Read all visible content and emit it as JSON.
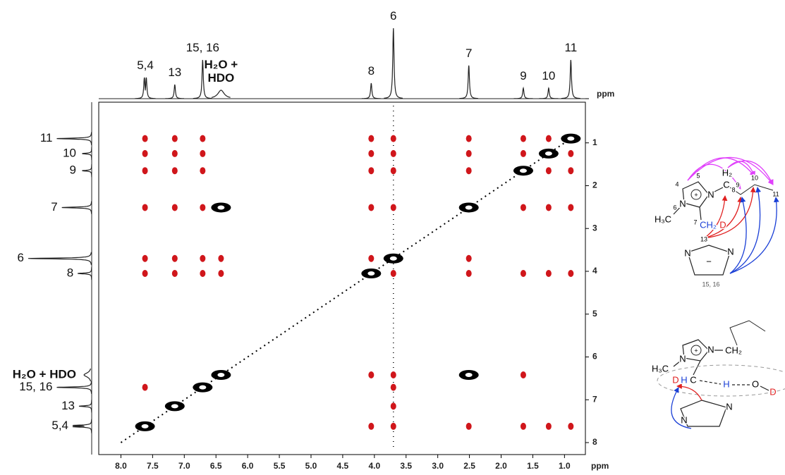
{
  "chart_data": {
    "type": "nmr2d",
    "xlim": [
      8.35,
      0.67
    ],
    "ylim": [
      0.05,
      8.28
    ],
    "xticks": [
      {
        "value": 8,
        "label": "8.0"
      },
      7.5,
      {
        "value": 7,
        "label": "7.0"
      },
      6.5,
      {
        "value": 6,
        "label": "6.0"
      },
      5.5,
      {
        "value": 5,
        "label": "5.0"
      },
      4.5,
      {
        "value": 4,
        "label": "4.0"
      },
      3.5,
      {
        "value": 3,
        "label": "3.0"
      },
      2.5,
      {
        "value": 2,
        "label": "2.0"
      },
      1.5,
      {
        "value": 1,
        "label": "1.0"
      }
    ],
    "yticks": [
      1,
      2,
      3,
      4,
      5,
      6,
      7,
      8
    ],
    "x_axis_label": "ppm",
    "projection_axis_label": "ppm",
    "projection_color": "#222222",
    "projection": [
      {
        "label": "5,4",
        "ppm": [
          7.63,
          7.6
        ],
        "height": 0.3
      },
      {
        "label": "13",
        "ppm": [
          7.15
        ],
        "height": 0.2
      },
      {
        "label": "15, 16",
        "ppm": [
          6.71
        ],
        "height": 0.55
      },
      {
        "label": "H₂O + HDO",
        "ppm": [
          6.42
        ],
        "height": 0.12,
        "bold": true
      },
      {
        "label": "8",
        "ppm": [
          4.05
        ],
        "height": 0.22
      },
      {
        "label": "6",
        "ppm": [
          3.7
        ],
        "height": 1.0
      },
      {
        "label": "7",
        "ppm": [
          2.51
        ],
        "height": 0.47
      },
      {
        "label": "9",
        "ppm": [
          1.65
        ],
        "height": 0.15
      },
      {
        "label": "10",
        "ppm": [
          1.25
        ],
        "height": 0.15
      },
      {
        "label": "11",
        "ppm": [
          0.9
        ],
        "height": 0.55
      }
    ],
    "series": [
      {
        "color": "#d0161b",
        "x": [
          7.62,
          7.15,
          6.71,
          4.05,
          3.7,
          2.51,
          1.65,
          1.25,
          7.62,
          7.15,
          6.71,
          4.05,
          3.7,
          2.51,
          1.65,
          0.9,
          7.62,
          7.15,
          6.71,
          4.05,
          3.7,
          2.51,
          1.25,
          0.9,
          7.62,
          7.15,
          6.71,
          4.05,
          3.7,
          1.65,
          1.25,
          0.9,
          7.62,
          7.15,
          6.71,
          6.42,
          4.05,
          2.51,
          7.62,
          7.15,
          6.71,
          6.42,
          3.7,
          2.51,
          1.65,
          1.25,
          0.9,
          4.05,
          3.7,
          1.65,
          7.62,
          3.7,
          3.7,
          4.05,
          3.7,
          2.51,
          1.65,
          1.25,
          0.9
        ],
        "y": [
          0.9,
          0.9,
          0.9,
          0.9,
          0.9,
          0.9,
          0.9,
          0.9,
          1.25,
          1.25,
          1.25,
          1.25,
          1.25,
          1.25,
          1.25,
          1.25,
          1.65,
          1.65,
          1.65,
          1.65,
          1.65,
          1.65,
          1.65,
          1.65,
          2.51,
          2.51,
          2.51,
          2.51,
          2.51,
          2.51,
          2.51,
          2.51,
          3.7,
          3.7,
          3.7,
          3.7,
          3.7,
          3.7,
          4.05,
          4.05,
          4.05,
          4.05,
          4.05,
          4.05,
          4.05,
          4.05,
          4.05,
          6.42,
          6.42,
          6.42,
          6.71,
          6.71,
          7.15,
          7.62,
          7.62,
          7.62,
          7.62,
          7.62,
          7.62
        ]
      },
      {
        "color": "#000000",
        "x": [
          7.62,
          7.15,
          6.71,
          6.42,
          4.05,
          3.7,
          2.51,
          1.65,
          1.25,
          0.9,
          6.42,
          2.51
        ],
        "y": [
          7.62,
          7.15,
          6.71,
          6.42,
          4.05,
          3.7,
          2.51,
          1.65,
          1.25,
          0.9,
          2.51,
          6.42
        ]
      }
    ]
  },
  "structure_top": {
    "labels": [
      "4",
      "5",
      "N",
      "+",
      "N",
      "6",
      "H₃C",
      "7",
      "CH₂",
      "D",
      "H₂",
      "C",
      "8",
      "9",
      "10",
      "11",
      "13",
      "N",
      "N",
      "−",
      "15, 16"
    ]
  },
  "structure_bottom": {
    "labels": [
      "N",
      "+",
      "N",
      "CH₂",
      "H₃C",
      "D",
      "H",
      "C",
      "H",
      "O",
      "D",
      "N",
      "N"
    ]
  }
}
